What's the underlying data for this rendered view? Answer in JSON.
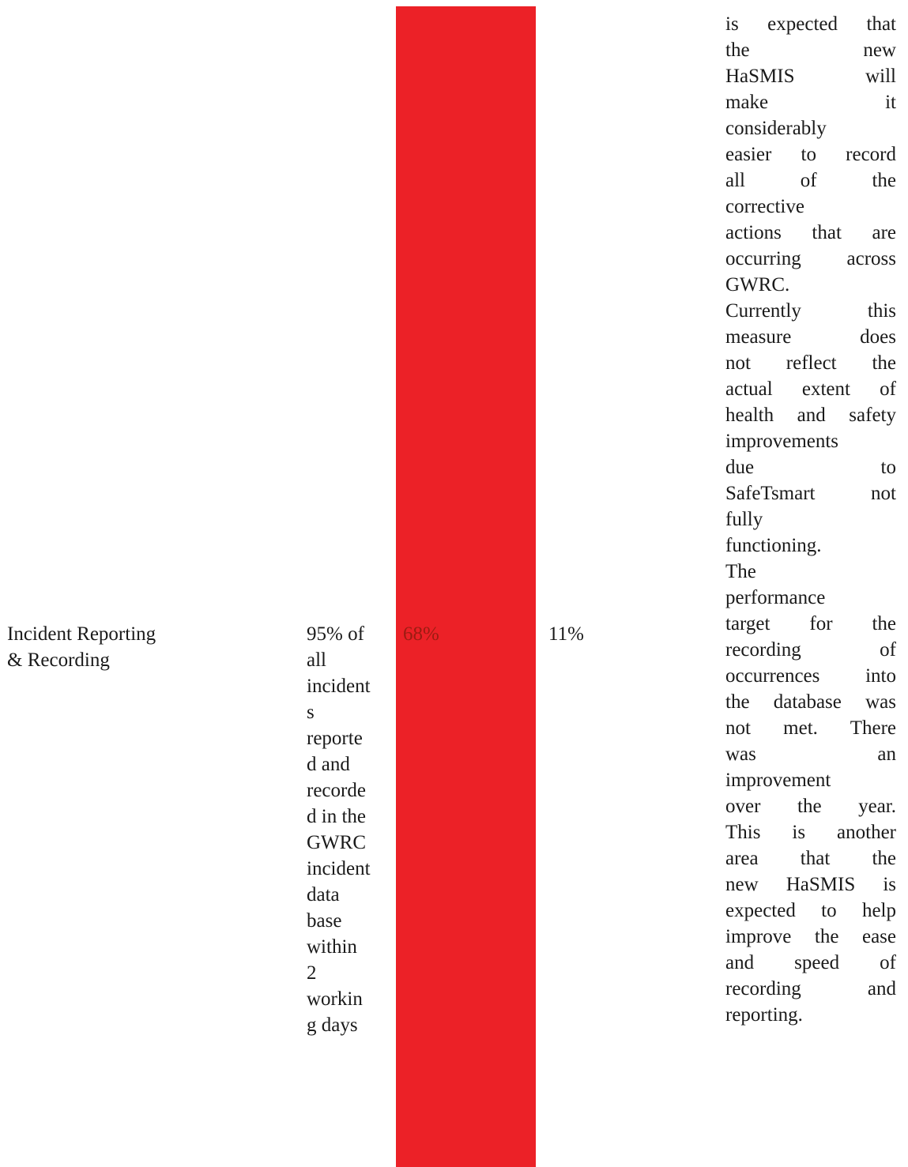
{
  "row_previous": {
    "comment_continued_lines": [
      "is expected that",
      "the new",
      "HaSMIS will",
      "make it",
      "considerably",
      "easier to record",
      "all of the",
      "corrective",
      "actions that are",
      "occurring across",
      "GWRC.",
      "Currently this",
      "measure does",
      "not reflect the",
      "actual extent of",
      "health and safety",
      "improvements",
      "due to",
      "SafeTsmart not",
      "fully",
      "functioning."
    ]
  },
  "row_incident": {
    "activity_lines": [
      "Incident Reporting",
      "& Recording"
    ],
    "target_lines": [
      "95% of",
      "all",
      "incident",
      "s",
      "reporte",
      "d and",
      "recorde",
      "d in the",
      "GWRC",
      "incident",
      "data",
      "base",
      "within",
      "2",
      "workin",
      "g days"
    ],
    "result": "68%",
    "change": "11%",
    "comment_lines": [
      "The",
      "performance",
      "target for the",
      "recording of",
      "occurrences into",
      "the database was",
      "not met. There",
      "was an",
      "improvement",
      "over the year.",
      "This is another",
      "area that the",
      "new HaSMIS is",
      "expected to help",
      "improve the ease",
      "and speed of",
      "recording and",
      "reporting."
    ]
  },
  "colors": {
    "status_red": "#ec2127",
    "result_text": "#9b1c12"
  }
}
